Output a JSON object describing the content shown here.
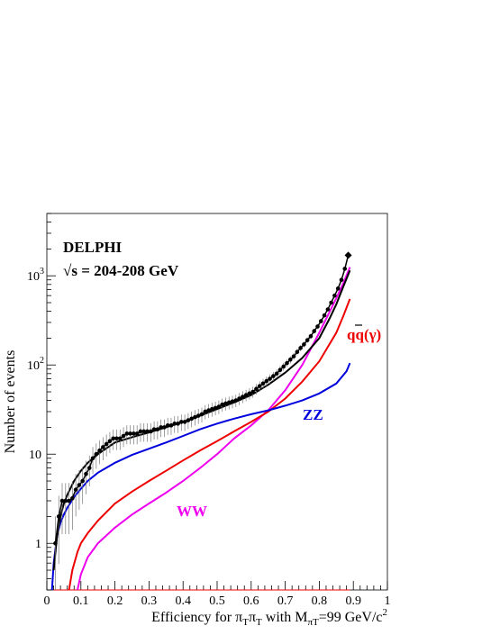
{
  "chart_data": {
    "type": "line",
    "ylabel": "Number of events",
    "xlabel": {
      "prefix": "Efficiency for  ",
      "pi": "π",
      "tau_sub": "T",
      "mid": " with M",
      "pitau_sub": "πT",
      "suffix": "=99 GeV/c",
      "sup": "2"
    },
    "x_axis": {
      "range": [
        0,
        1
      ],
      "ticks": [
        0,
        0.1,
        0.2,
        0.3,
        0.4,
        0.5,
        0.6,
        0.7,
        0.8,
        0.9,
        1
      ],
      "tick_labels": [
        "0",
        "0.1",
        "0.2",
        "0.3",
        "0.4",
        "0.5",
        "0.6",
        "0.7",
        "0.8",
        "0.9",
        "1"
      ]
    },
    "y_axis": {
      "scale": "log",
      "range": [
        0.3,
        5000
      ],
      "ticks": [
        1,
        10,
        100,
        1000
      ],
      "tick_labels": [
        {
          "base": "1",
          "exp": ""
        },
        {
          "base": "10",
          "exp": ""
        },
        {
          "base": "10",
          "exp": "2"
        },
        {
          "base": "10",
          "exp": "3"
        }
      ]
    },
    "annotations": {
      "experiment": "DELPHI",
      "energy_sqrt": "√",
      "energy_text": "s = 204-208 GeV",
      "zz": "ZZ",
      "ww": "WW",
      "qq_q": "q",
      "qq_bar": "q",
      "qq_gamma": "(γ)"
    },
    "colors": {
      "data": "#000000",
      "total_mc": "#000000",
      "zz": "#0000dd",
      "qq": "#ee0000",
      "ww": "#ee00ee",
      "error_bars": "#777777"
    },
    "series": [
      {
        "name": "DATA",
        "kind": "points",
        "x": [
          0.025,
          0.035,
          0.045,
          0.055,
          0.065,
          0.075,
          0.085,
          0.095,
          0.105,
          0.115,
          0.125,
          0.135,
          0.145,
          0.155,
          0.165,
          0.175,
          0.185,
          0.195,
          0.205,
          0.215,
          0.225,
          0.235,
          0.245,
          0.255,
          0.265,
          0.275,
          0.285,
          0.295,
          0.305,
          0.315,
          0.325,
          0.335,
          0.345,
          0.355,
          0.365,
          0.375,
          0.385,
          0.395,
          0.405,
          0.415,
          0.425,
          0.435,
          0.445,
          0.455,
          0.465,
          0.475,
          0.485,
          0.495,
          0.505,
          0.515,
          0.525,
          0.535,
          0.545,
          0.555,
          0.565,
          0.575,
          0.585,
          0.595,
          0.605,
          0.615,
          0.625,
          0.635,
          0.645,
          0.655,
          0.665,
          0.675,
          0.685,
          0.695,
          0.705,
          0.715,
          0.725,
          0.735,
          0.745,
          0.755,
          0.765,
          0.775,
          0.785,
          0.795,
          0.805,
          0.815,
          0.825,
          0.835,
          0.845,
          0.855,
          0.865,
          0.875,
          0.885
        ],
        "y": [
          1,
          2,
          3,
          3,
          3,
          3.2,
          4,
          4.5,
          5,
          6,
          7,
          9,
          10,
          11,
          12,
          13,
          14,
          15,
          15,
          15,
          16,
          17,
          17,
          17,
          17,
          18,
          18,
          18,
          18,
          19,
          19,
          20,
          20,
          21,
          21,
          22,
          22,
          23,
          23,
          24,
          25,
          26,
          27,
          28,
          30,
          31,
          32,
          33,
          34,
          36,
          37,
          38,
          39,
          40,
          42,
          44,
          46,
          48,
          50,
          54,
          58,
          62,
          66,
          70,
          75,
          80,
          88,
          96,
          105,
          115,
          125,
          140,
          155,
          170,
          190,
          210,
          240,
          270,
          310,
          360,
          420,
          500,
          600,
          720,
          900,
          1200,
          1700
        ]
      },
      {
        "name": "Total MC",
        "kind": "line",
        "x": [
          0.02,
          0.03,
          0.04,
          0.05,
          0.06,
          0.08,
          0.1,
          0.12,
          0.15,
          0.18,
          0.2,
          0.25,
          0.3,
          0.35,
          0.4,
          0.45,
          0.5,
          0.55,
          0.6,
          0.65,
          0.7,
          0.75,
          0.8,
          0.83,
          0.85,
          0.87,
          0.89
        ],
        "y": [
          0.5,
          1.2,
          2.0,
          2.8,
          3.5,
          5,
          6.5,
          8,
          10,
          12,
          13.5,
          15.5,
          17.5,
          20,
          23,
          27,
          32,
          38,
          46,
          60,
          82,
          120,
          200,
          330,
          480,
          750,
          1150
        ]
      },
      {
        "name": "ZZ",
        "kind": "line",
        "x": [
          0.015,
          0.02,
          0.03,
          0.04,
          0.05,
          0.06,
          0.08,
          0.1,
          0.12,
          0.15,
          0.2,
          0.25,
          0.3,
          0.35,
          0.4,
          0.45,
          0.5,
          0.55,
          0.6,
          0.65,
          0.7,
          0.75,
          0.8,
          0.85,
          0.88,
          0.89
        ],
        "y": [
          0.3,
          0.6,
          1.2,
          1.7,
          2.1,
          2.5,
          3.3,
          4.1,
          5.0,
          6.2,
          8.0,
          9.8,
          11.5,
          13.5,
          16,
          19,
          22,
          25,
          28,
          31,
          35,
          40,
          48,
          62,
          85,
          105
        ]
      },
      {
        "name": "qq(γ)",
        "kind": "line",
        "x": [
          0.065,
          0.075,
          0.09,
          0.1,
          0.12,
          0.15,
          0.2,
          0.25,
          0.3,
          0.35,
          0.4,
          0.45,
          0.5,
          0.55,
          0.6,
          0.65,
          0.7,
          0.75,
          0.8,
          0.85,
          0.87,
          0.89
        ],
        "y": [
          0.3,
          0.5,
          0.8,
          1.0,
          1.3,
          1.8,
          2.8,
          3.8,
          5.0,
          6.5,
          8.5,
          11,
          14,
          18,
          23,
          30,
          42,
          65,
          110,
          230,
          350,
          550
        ]
      },
      {
        "name": "WW",
        "kind": "line",
        "x": [
          0.09,
          0.1,
          0.12,
          0.15,
          0.2,
          0.25,
          0.3,
          0.35,
          0.4,
          0.45,
          0.5,
          0.55,
          0.6,
          0.65,
          0.7,
          0.75,
          0.8,
          0.85,
          0.87,
          0.89
        ],
        "y": [
          0.3,
          0.45,
          0.7,
          1.0,
          1.5,
          2.1,
          2.8,
          3.7,
          5.0,
          7.0,
          10,
          15,
          21,
          31,
          52,
          100,
          230,
          560,
          820,
          1250
        ]
      },
      {
        "name": "baseline",
        "kind": "line",
        "x": [
          0.02,
          0.89
        ],
        "y": [
          0.3,
          0.3
        ]
      }
    ]
  }
}
